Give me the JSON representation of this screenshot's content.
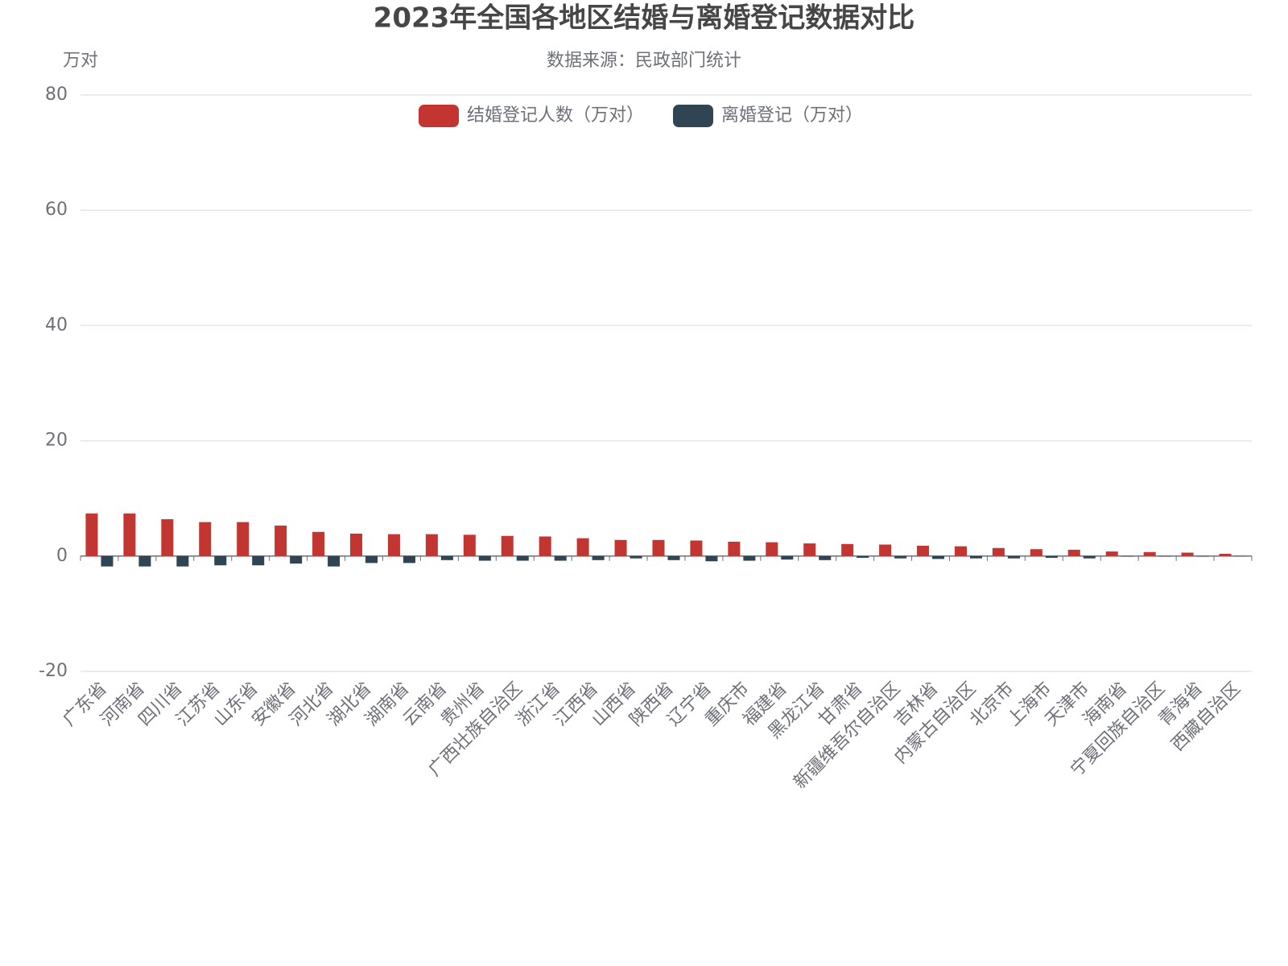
{
  "chart_data": {
    "type": "bar",
    "title": "2023年全国各地区结婚与离婚登记数据对比",
    "subtitle": "数据来源：民政部门统计",
    "y_label": "万对",
    "categories": [
      "广东省",
      "河南省",
      "四川省",
      "江苏省",
      "山东省",
      "安徽省",
      "河北省",
      "湖北省",
      "湖南省",
      "云南省",
      "贵州省",
      "广西壮族自治区",
      "浙江省",
      "江西省",
      "山西省",
      "陕西省",
      "辽宁省",
      "重庆市",
      "福建省",
      "黑龙江省",
      "甘肃省",
      "新疆维吾尔自治区",
      "吉林省",
      "内蒙古自治区",
      "北京市",
      "上海市",
      "天津市",
      "海南省",
      "宁夏回族自治区",
      "青海省",
      "西藏自治区"
    ],
    "series": [
      {
        "name": "结婚登记人数（万对）",
        "color": "#c23531",
        "values": [
          7.4,
          7.4,
          6.4,
          5.9,
          5.9,
          5.3,
          4.2,
          3.9,
          3.8,
          3.8,
          3.7,
          3.5,
          3.4,
          3.1,
          2.8,
          2.8,
          2.7,
          2.5,
          2.4,
          2.2,
          2.1,
          2.0,
          1.8,
          1.7,
          1.4,
          1.2,
          1.1,
          0.8,
          0.7,
          0.6,
          0.4
        ]
      },
      {
        "name": "离婚登记（万对）",
        "color": "#2f4554",
        "values": [
          -1.8,
          -1.8,
          -1.8,
          -1.6,
          -1.6,
          -1.3,
          -1.8,
          -1.2,
          -1.2,
          -0.7,
          -0.8,
          -0.8,
          -0.8,
          -0.7,
          -0.4,
          -0.7,
          -0.9,
          -0.8,
          -0.6,
          -0.7,
          -0.3,
          -0.4,
          -0.5,
          -0.4,
          -0.4,
          -0.3,
          -0.4,
          -0.1,
          -0.1,
          -0.1,
          -0.05
        ]
      }
    ],
    "ylim": [
      -20,
      80
    ],
    "yticks": [
      -20,
      0,
      20,
      40,
      60,
      80
    ],
    "grid": true,
    "legend": "top"
  }
}
